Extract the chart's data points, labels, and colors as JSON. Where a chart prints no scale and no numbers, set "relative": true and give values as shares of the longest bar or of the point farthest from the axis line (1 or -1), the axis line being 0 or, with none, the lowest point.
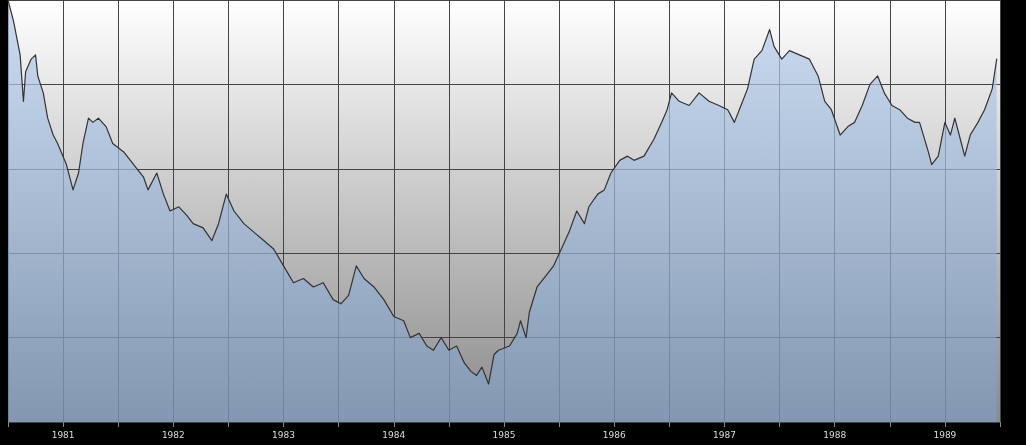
{
  "chart_data": {
    "type": "area",
    "relative": true,
    "grid": true,
    "marker": "none",
    "line_style": "solid",
    "xlim": [
      1981,
      1990
    ],
    "xticks": [
      {
        "value": 1981,
        "label": null
      },
      {
        "value": 1981.5,
        "label": "1981"
      },
      {
        "value": 1982,
        "label": null
      },
      {
        "value": 1982.5,
        "label": "1982"
      },
      {
        "value": 1983,
        "label": null
      },
      {
        "value": 1983.5,
        "label": "1983"
      },
      {
        "value": 1984,
        "label": null
      },
      {
        "value": 1984.5,
        "label": "1984"
      },
      {
        "value": 1985,
        "label": null
      },
      {
        "value": 1985.5,
        "label": "1985"
      },
      {
        "value": 1986,
        "label": null
      },
      {
        "value": 1986.5,
        "label": "1986"
      },
      {
        "value": 1987,
        "label": null
      },
      {
        "value": 1987.5,
        "label": "1987"
      },
      {
        "value": 1988,
        "label": null
      },
      {
        "value": 1988.5,
        "label": "1988"
      },
      {
        "value": 1989,
        "label": null
      },
      {
        "value": 1989.5,
        "label": "1989"
      },
      {
        "value": 1990,
        "label": null
      }
    ],
    "series": [
      {
        "color": "#333333",
        "x": [
          1981.0,
          1981.05,
          1981.11,
          1981.14,
          1981.16,
          1981.21,
          1981.25,
          1981.27,
          1981.32,
          1981.36,
          1981.41,
          1981.45,
          1981.53,
          1981.59,
          1981.64,
          1981.68,
          1981.73,
          1981.77,
          1981.82,
          1981.89,
          1981.95,
          1982.05,
          1982.14,
          1982.23,
          1982.27,
          1982.35,
          1982.41,
          1982.47,
          1982.55,
          1982.62,
          1982.68,
          1982.77,
          1982.85,
          1982.91,
          1982.98,
          1983.05,
          1983.14,
          1983.23,
          1983.32,
          1983.41,
          1983.5,
          1983.59,
          1983.68,
          1983.77,
          1983.86,
          1983.95,
          1984.02,
          1984.09,
          1984.16,
          1984.23,
          1984.32,
          1984.41,
          1984.5,
          1984.59,
          1984.65,
          1984.73,
          1984.8,
          1984.86,
          1984.93,
          1985.0,
          1985.07,
          1985.14,
          1985.2,
          1985.25,
          1985.3,
          1985.36,
          1985.41,
          1985.45,
          1985.55,
          1985.62,
          1985.65,
          1985.7,
          1985.73,
          1985.8,
          1985.86,
          1985.95,
          1986.02,
          1986.09,
          1986.16,
          1986.23,
          1986.27,
          1986.35,
          1986.41,
          1986.47,
          1986.55,
          1986.62,
          1986.68,
          1986.77,
          1986.86,
          1986.93,
          1986.98,
          1987.02,
          1987.09,
          1987.18,
          1987.27,
          1987.36,
          1987.45,
          1987.53,
          1987.59,
          1987.65,
          1987.71,
          1987.77,
          1987.84,
          1987.91,
          1987.95,
          1988.02,
          1988.09,
          1988.18,
          1988.27,
          1988.35,
          1988.41,
          1988.47,
          1988.55,
          1988.62,
          1988.68,
          1988.75,
          1988.82,
          1988.89,
          1988.95,
          1989.02,
          1989.09,
          1989.16,
          1989.23,
          1989.27,
          1989.35,
          1989.38,
          1989.44,
          1989.5,
          1989.55,
          1989.59,
          1989.64,
          1989.68,
          1989.73,
          1989.8,
          1989.86,
          1989.93,
          1989.97
        ],
        "values": [
          1.0,
          0.95,
          0.87,
          0.76,
          0.83,
          0.86,
          0.87,
          0.82,
          0.78,
          0.72,
          0.68,
          0.66,
          0.61,
          0.55,
          0.59,
          0.66,
          0.72,
          0.71,
          0.72,
          0.7,
          0.66,
          0.64,
          0.61,
          0.58,
          0.55,
          0.59,
          0.54,
          0.5,
          0.51,
          0.49,
          0.47,
          0.46,
          0.43,
          0.47,
          0.54,
          0.5,
          0.47,
          0.45,
          0.43,
          0.41,
          0.37,
          0.33,
          0.34,
          0.32,
          0.33,
          0.29,
          0.28,
          0.3,
          0.37,
          0.34,
          0.32,
          0.29,
          0.25,
          0.24,
          0.2,
          0.21,
          0.18,
          0.17,
          0.2,
          0.17,
          0.18,
          0.14,
          0.12,
          0.11,
          0.13,
          0.09,
          0.16,
          0.17,
          0.18,
          0.21,
          0.24,
          0.2,
          0.26,
          0.32,
          0.34,
          0.37,
          0.41,
          0.45,
          0.5,
          0.47,
          0.51,
          0.54,
          0.55,
          0.59,
          0.62,
          0.63,
          0.62,
          0.63,
          0.67,
          0.71,
          0.74,
          0.78,
          0.76,
          0.75,
          0.78,
          0.76,
          0.75,
          0.74,
          0.71,
          0.75,
          0.79,
          0.86,
          0.88,
          0.93,
          0.89,
          0.86,
          0.88,
          0.87,
          0.86,
          0.82,
          0.76,
          0.74,
          0.68,
          0.7,
          0.71,
          0.75,
          0.8,
          0.82,
          0.78,
          0.75,
          0.74,
          0.72,
          0.71,
          0.71,
          0.64,
          0.61,
          0.63,
          0.71,
          0.68,
          0.72,
          0.67,
          0.63,
          0.68,
          0.71,
          0.74,
          0.79,
          0.86
        ]
      }
    ]
  }
}
